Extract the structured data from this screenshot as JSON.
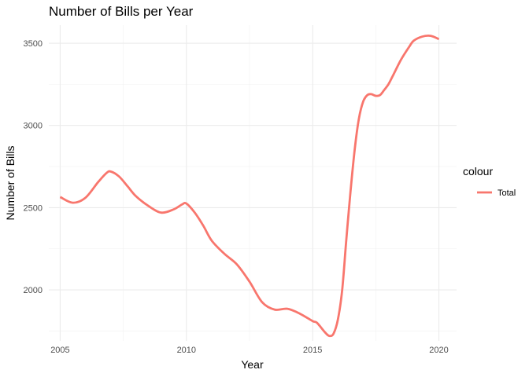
{
  "chart_data": {
    "type": "line",
    "title": "Number of Bills per Year",
    "xlabel": "Year",
    "ylabel": "Number of Bills",
    "xlim": [
      2004.55,
      2020.7
    ],
    "ylim": [
      1690,
      3610
    ],
    "x_ticks": [
      2005,
      2010,
      2015,
      2020
    ],
    "y_ticks": [
      2000,
      2500,
      3000,
      3500
    ],
    "x_tick_labels": [
      "2005",
      "2010",
      "2015",
      "2020"
    ],
    "y_tick_labels": [
      "2000",
      "2500",
      "3000",
      "3500"
    ],
    "grid": true,
    "legend": {
      "title": "colour",
      "placement": "right"
    },
    "series": [
      {
        "name": "Total",
        "color": "#F8766D",
        "x": [
          2005.0,
          2005.5,
          2006.0,
          2006.5,
          2006.83,
          2007.0,
          2007.33,
          2007.67,
          2008.0,
          2008.5,
          2009.0,
          2009.5,
          2009.83,
          2010.0,
          2010.33,
          2010.67,
          2011.0,
          2011.5,
          2012.0,
          2012.5,
          2013.0,
          2013.5,
          2014.0,
          2014.5,
          2015.0,
          2015.17,
          2015.5,
          2015.67,
          2015.83,
          2016.0,
          2016.17,
          2016.33,
          2016.5,
          2016.67,
          2016.83,
          2017.0,
          2017.17,
          2017.33,
          2017.5,
          2017.67,
          2017.83,
          2018.0,
          2018.17,
          2018.5,
          2018.83,
          2019.0,
          2019.33,
          2019.67,
          2020.0
        ],
        "y": [
          2565,
          2530,
          2560,
          2655,
          2710,
          2720,
          2690,
          2630,
          2570,
          2510,
          2470,
          2490,
          2520,
          2525,
          2470,
          2390,
          2300,
          2220,
          2155,
          2050,
          1925,
          1880,
          1885,
          1855,
          1810,
          1800,
          1740,
          1720,
          1735,
          1820,
          2000,
          2300,
          2600,
          2860,
          3040,
          3145,
          3185,
          3190,
          3180,
          3185,
          3215,
          3250,
          3300,
          3400,
          3480,
          3515,
          3540,
          3545,
          3525
        ]
      }
    ]
  }
}
